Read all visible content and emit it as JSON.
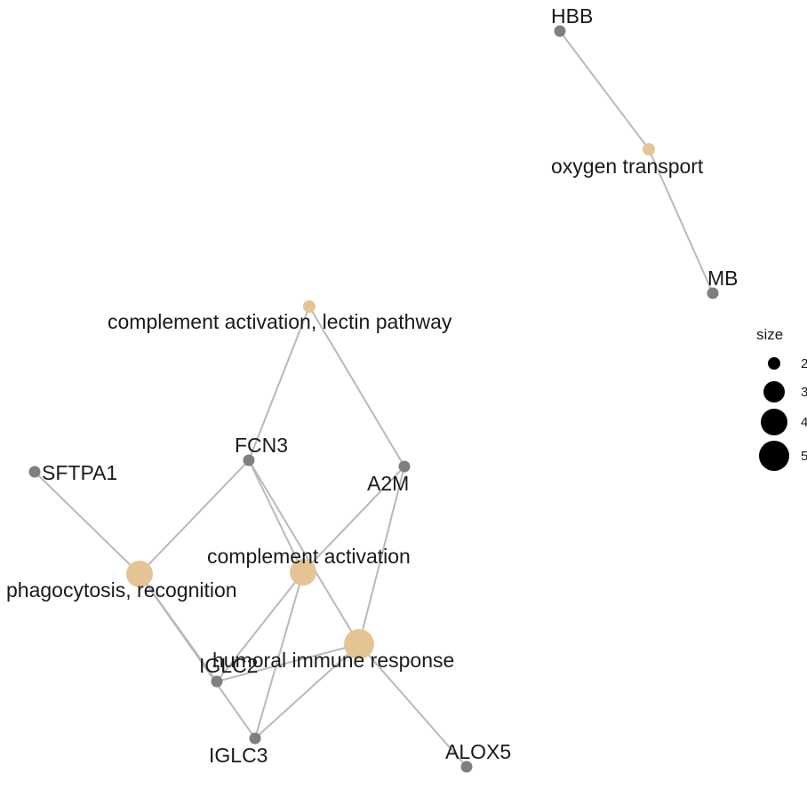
{
  "network": {
    "gene_nodes": [
      "HBB",
      "MB",
      "FCN3",
      "SFTPA1",
      "A2M",
      "IGLC2",
      "IGLC3",
      "ALOX5"
    ],
    "term_nodes": [
      {
        "label": "oxygen transport",
        "size": 2
      },
      {
        "label": "complement activation, lectin pathway",
        "size": 2
      },
      {
        "label": "complement activation",
        "size": 4
      },
      {
        "label": "phagocytosis, recognition",
        "size": 4
      },
      {
        "label": "humoral immune response",
        "size": 5
      }
    ],
    "edges": [
      [
        "HBB",
        "oxygen transport"
      ],
      [
        "MB",
        "oxygen transport"
      ],
      [
        "FCN3",
        "complement activation, lectin pathway"
      ],
      [
        "A2M",
        "complement activation, lectin pathway"
      ],
      [
        "FCN3",
        "phagocytosis, recognition"
      ],
      [
        "SFTPA1",
        "phagocytosis, recognition"
      ],
      [
        "IGLC2",
        "phagocytosis, recognition"
      ],
      [
        "IGLC3",
        "phagocytosis, recognition"
      ],
      [
        "FCN3",
        "complement activation"
      ],
      [
        "A2M",
        "complement activation"
      ],
      [
        "IGLC2",
        "complement activation"
      ],
      [
        "IGLC3",
        "complement activation"
      ],
      [
        "FCN3",
        "humoral immune response"
      ],
      [
        "A2M",
        "humoral immune response"
      ],
      [
        "IGLC2",
        "humoral immune response"
      ],
      [
        "IGLC3",
        "humoral immune response"
      ],
      [
        "ALOX5",
        "humoral immune response"
      ]
    ]
  },
  "legend": {
    "title": "size",
    "items": [
      {
        "label": "2",
        "size": 2
      },
      {
        "label": "3",
        "size": 3
      },
      {
        "label": "4",
        "size": 4
      },
      {
        "label": "5",
        "size": 5
      }
    ]
  },
  "colors": {
    "gene_node": "#7f7f7f",
    "term_node": "#e5c494",
    "edge": "#b9b9b9",
    "legend_dot": "#000000"
  }
}
